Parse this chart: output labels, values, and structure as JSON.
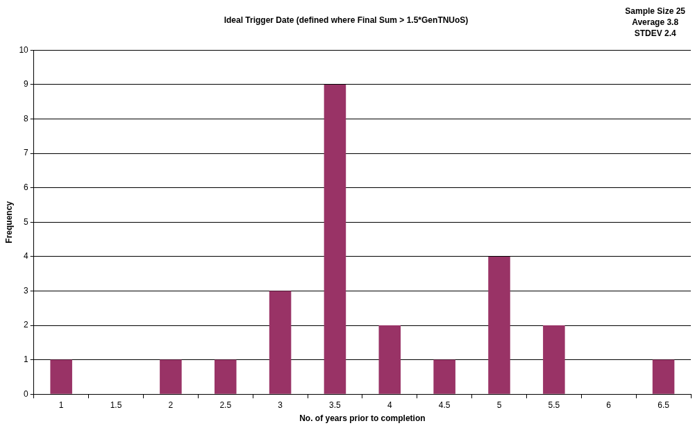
{
  "chart_data": {
    "type": "bar",
    "title": "Ideal Trigger Date (defined where Final Sum > 1.5*GenTNUoS)",
    "xlabel": "No. of years prior to completion",
    "ylabel": "Frequency",
    "categories": [
      "1",
      "1.5",
      "2",
      "2.5",
      "3",
      "3.5",
      "4",
      "4.5",
      "5",
      "5.5",
      "6",
      "6.5"
    ],
    "values": [
      1,
      0,
      1,
      1,
      3,
      9,
      2,
      1,
      4,
      2,
      0,
      1
    ],
    "color": "#993366",
    "ylim": [
      0,
      10
    ],
    "yticks": [
      0,
      1,
      2,
      3,
      4,
      5,
      6,
      7,
      8,
      9,
      10
    ],
    "grid": "y",
    "legend": false,
    "annotations": [
      "Sample Size 25",
      "Average 3.8",
      "STDEV 2.4"
    ]
  }
}
